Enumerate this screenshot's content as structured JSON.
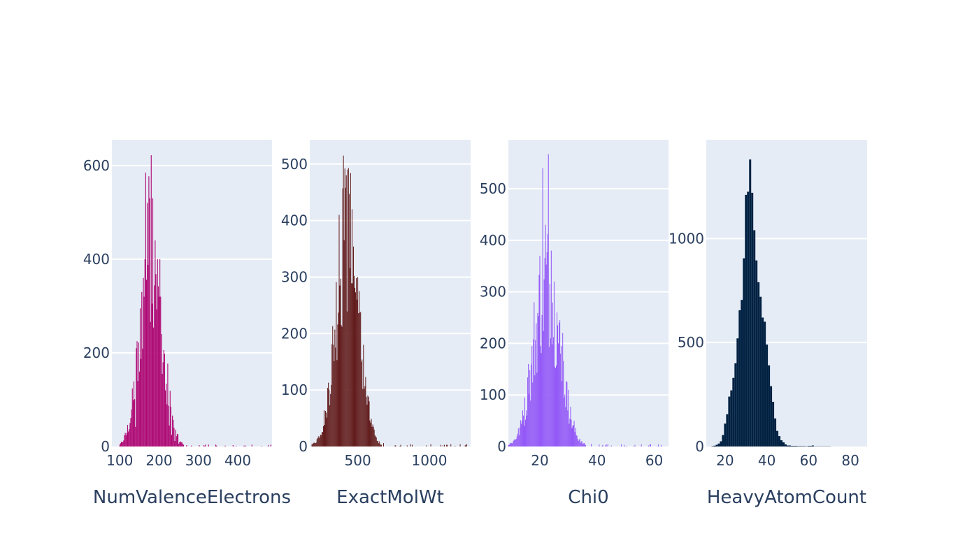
{
  "chart_data": [
    {
      "type": "bar",
      "xlabel": "NumValenceElectrons",
      "ylabel": "",
      "color": "#AF0A74",
      "xlim": [
        80,
        487
      ],
      "ylim": [
        0,
        655
      ],
      "xticks": [
        100,
        200,
        300,
        400
      ],
      "yticks": [
        0,
        200,
        400,
        600
      ],
      "bin_width": 2,
      "peaks": [
        {
          "x": 140,
          "y": 42
        },
        {
          "x": 146,
          "y": 140
        },
        {
          "x": 150,
          "y": 160
        },
        {
          "x": 156,
          "y": 330
        },
        {
          "x": 160,
          "y": 360
        },
        {
          "x": 164,
          "y": 400
        },
        {
          "x": 166,
          "y": 585
        },
        {
          "x": 170,
          "y": 520
        },
        {
          "x": 176,
          "y": 530
        },
        {
          "x": 180,
          "y": 622
        },
        {
          "x": 184,
          "y": 530
        },
        {
          "x": 190,
          "y": 440
        },
        {
          "x": 196,
          "y": 400
        },
        {
          "x": 200,
          "y": 320
        },
        {
          "x": 206,
          "y": 240
        },
        {
          "x": 210,
          "y": 180
        },
        {
          "x": 216,
          "y": 120
        },
        {
          "x": 220,
          "y": 90
        },
        {
          "x": 226,
          "y": 45
        },
        {
          "x": 232,
          "y": 25
        },
        {
          "x": 240,
          "y": 12
        },
        {
          "x": 250,
          "y": 6
        },
        {
          "x": 270,
          "y": 3
        }
      ],
      "dist": {
        "mu": 180,
        "sigma": 27,
        "peak": 470
      }
    },
    {
      "type": "bar",
      "xlabel": "ExactMolWt",
      "ylabel": "",
      "color": "#621C1C",
      "xlim": [
        165,
        1288
      ],
      "ylim": [
        0,
        543
      ],
      "xticks": [
        500,
        1000
      ],
      "yticks": [
        0,
        100,
        200,
        300,
        400,
        500
      ],
      "bin_width": 5,
      "peaks": [
        {
          "x": 230,
          "y": 15
        },
        {
          "x": 280,
          "y": 60
        },
        {
          "x": 330,
          "y": 180
        },
        {
          "x": 370,
          "y": 410
        },
        {
          "x": 398,
          "y": 515
        },
        {
          "x": 420,
          "y": 480
        },
        {
          "x": 430,
          "y": 490
        },
        {
          "x": 460,
          "y": 420
        },
        {
          "x": 500,
          "y": 300
        },
        {
          "x": 540,
          "y": 180
        },
        {
          "x": 580,
          "y": 80
        },
        {
          "x": 620,
          "y": 20
        },
        {
          "x": 680,
          "y": 6
        },
        {
          "x": 800,
          "y": 3
        }
      ],
      "dist": {
        "mu": 425,
        "sigma": 80,
        "peak": 400
      }
    },
    {
      "type": "bar",
      "xlabel": "Chi0",
      "ylabel": "",
      "color": "#9358F7",
      "xlim": [
        9,
        65
      ],
      "ylim": [
        0,
        595
      ],
      "xticks": [
        20,
        40,
        60
      ],
      "yticks": [
        0,
        100,
        200,
        300,
        400,
        500
      ],
      "bin_width": 0.25,
      "peaks": [
        {
          "x": 12,
          "y": 20
        },
        {
          "x": 14,
          "y": 70
        },
        {
          "x": 16,
          "y": 160
        },
        {
          "x": 18,
          "y": 280
        },
        {
          "x": 20,
          "y": 370
        },
        {
          "x": 21,
          "y": 540
        },
        {
          "x": 22,
          "y": 430
        },
        {
          "x": 23,
          "y": 567
        },
        {
          "x": 24,
          "y": 380
        },
        {
          "x": 25,
          "y": 320
        },
        {
          "x": 26,
          "y": 260
        },
        {
          "x": 28,
          "y": 220
        },
        {
          "x": 30,
          "y": 110
        },
        {
          "x": 32,
          "y": 50
        },
        {
          "x": 34,
          "y": 15
        },
        {
          "x": 38,
          "y": 5
        },
        {
          "x": 45,
          "y": 2
        }
      ],
      "dist": {
        "mu": 22.5,
        "sigma": 4.5,
        "peak": 340
      }
    },
    {
      "type": "bar",
      "xlabel": "HeavyAtomCount",
      "ylabel": "",
      "color": "#012142",
      "xlim": [
        11,
        88
      ],
      "ylim": [
        0,
        1475
      ],
      "xticks": [
        20,
        40,
        60,
        80
      ],
      "yticks": [
        0,
        500,
        1000
      ],
      "bin_width": 1,
      "values_x": [
        14,
        15,
        16,
        17,
        18,
        19,
        20,
        21,
        22,
        23,
        24,
        25,
        26,
        27,
        28,
        29,
        30,
        31,
        32,
        33,
        34,
        35,
        36,
        37,
        38,
        39,
        40,
        41,
        42,
        43,
        44,
        45,
        46,
        47,
        48,
        49,
        50,
        51,
        52,
        53,
        54,
        55,
        56,
        57,
        58,
        59,
        60,
        61,
        62,
        63,
        64,
        65,
        66,
        67,
        68,
        69,
        70
      ],
      "values_y": [
        2,
        4,
        8,
        14,
        25,
        55,
        110,
        155,
        240,
        270,
        330,
        400,
        520,
        655,
        705,
        905,
        1210,
        1225,
        1380,
        1220,
        1040,
        895,
        790,
        720,
        620,
        600,
        490,
        390,
        290,
        215,
        135,
        75,
        50,
        30,
        20,
        10,
        5,
        5,
        3,
        3,
        3,
        2,
        2,
        2,
        2,
        1,
        3,
        3,
        5,
        1,
        1,
        1,
        1,
        1,
        1,
        1,
        1
      ]
    }
  ]
}
